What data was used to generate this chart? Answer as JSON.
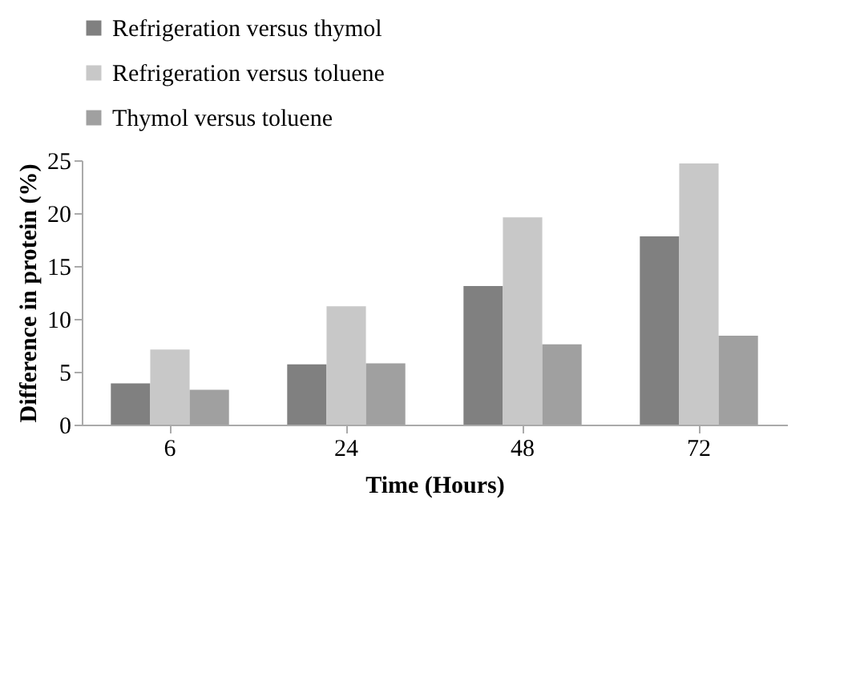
{
  "chart_data": {
    "type": "bar",
    "xlabel": "Time (Hours)",
    "ylabel": "Difference in protein (%)",
    "categories": [
      "6",
      "24",
      "48",
      "72"
    ],
    "series": [
      {
        "name": "Refrigeration versus thymol",
        "color": "#808080",
        "values": [
          3.9,
          5.7,
          13.1,
          17.8
        ]
      },
      {
        "name": "Refrigeration versus toluene",
        "color": "#c8c8c8",
        "values": [
          7.1,
          11.2,
          19.6,
          24.7
        ]
      },
      {
        "name": "Thymol versus toluene",
        "color": "#a0a0a0",
        "values": [
          3.3,
          5.8,
          7.6,
          8.4
        ]
      }
    ],
    "ylim": [
      0,
      25
    ],
    "yticks": [
      0,
      5,
      10,
      15,
      20,
      25
    ],
    "legend": "top",
    "grid": false
  }
}
